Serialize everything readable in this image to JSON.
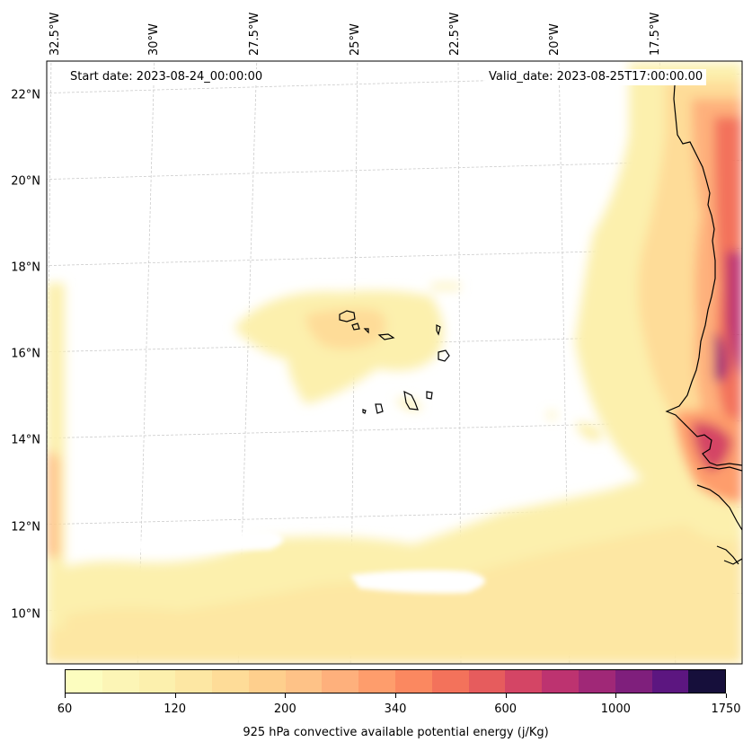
{
  "map": {
    "start_date": "Start date: 2023-08-24_00:00:00",
    "valid_date": "Valid_date: 2023-08-25T17:00:00.00",
    "lat_labels": [
      "22°N",
      "20°N",
      "18°N",
      "16°N",
      "14°N",
      "12°N",
      "10°N"
    ],
    "lon_labels": [
      "32.5°W",
      "30°W",
      "27.5°W",
      "25°W",
      "22.5°W",
      "20°W",
      "17.5°W"
    ],
    "lat_ticks_deg": [
      22,
      20,
      18,
      16,
      14,
      12,
      10
    ],
    "lon_ticks_deg": [
      -32.5,
      -30,
      -27.5,
      -25,
      -22.5,
      -20,
      -17.5
    ],
    "gridlines": true,
    "gridline_color": "#cccccc",
    "coastline_color": "#000000"
  },
  "colorbar": {
    "title": "925 hPa convective available potential energy (j/Kg)",
    "tick_labels": [
      "60",
      "120",
      "200",
      "340",
      "600",
      "1000",
      "1750"
    ],
    "colors": [
      "#fcfdbf",
      "#fcf5b6",
      "#fcf0ad",
      "#fde7a3",
      "#fedc98",
      "#fecf8d",
      "#fec287",
      "#feb07c",
      "#fe9d6c",
      "#fb8860",
      "#f3725b",
      "#e65c5d",
      "#d44565",
      "#bd3370",
      "#a02877",
      "#7f1f7c",
      "#5c1680",
      "#160f3b"
    ],
    "colormap": "magma_r"
  }
}
